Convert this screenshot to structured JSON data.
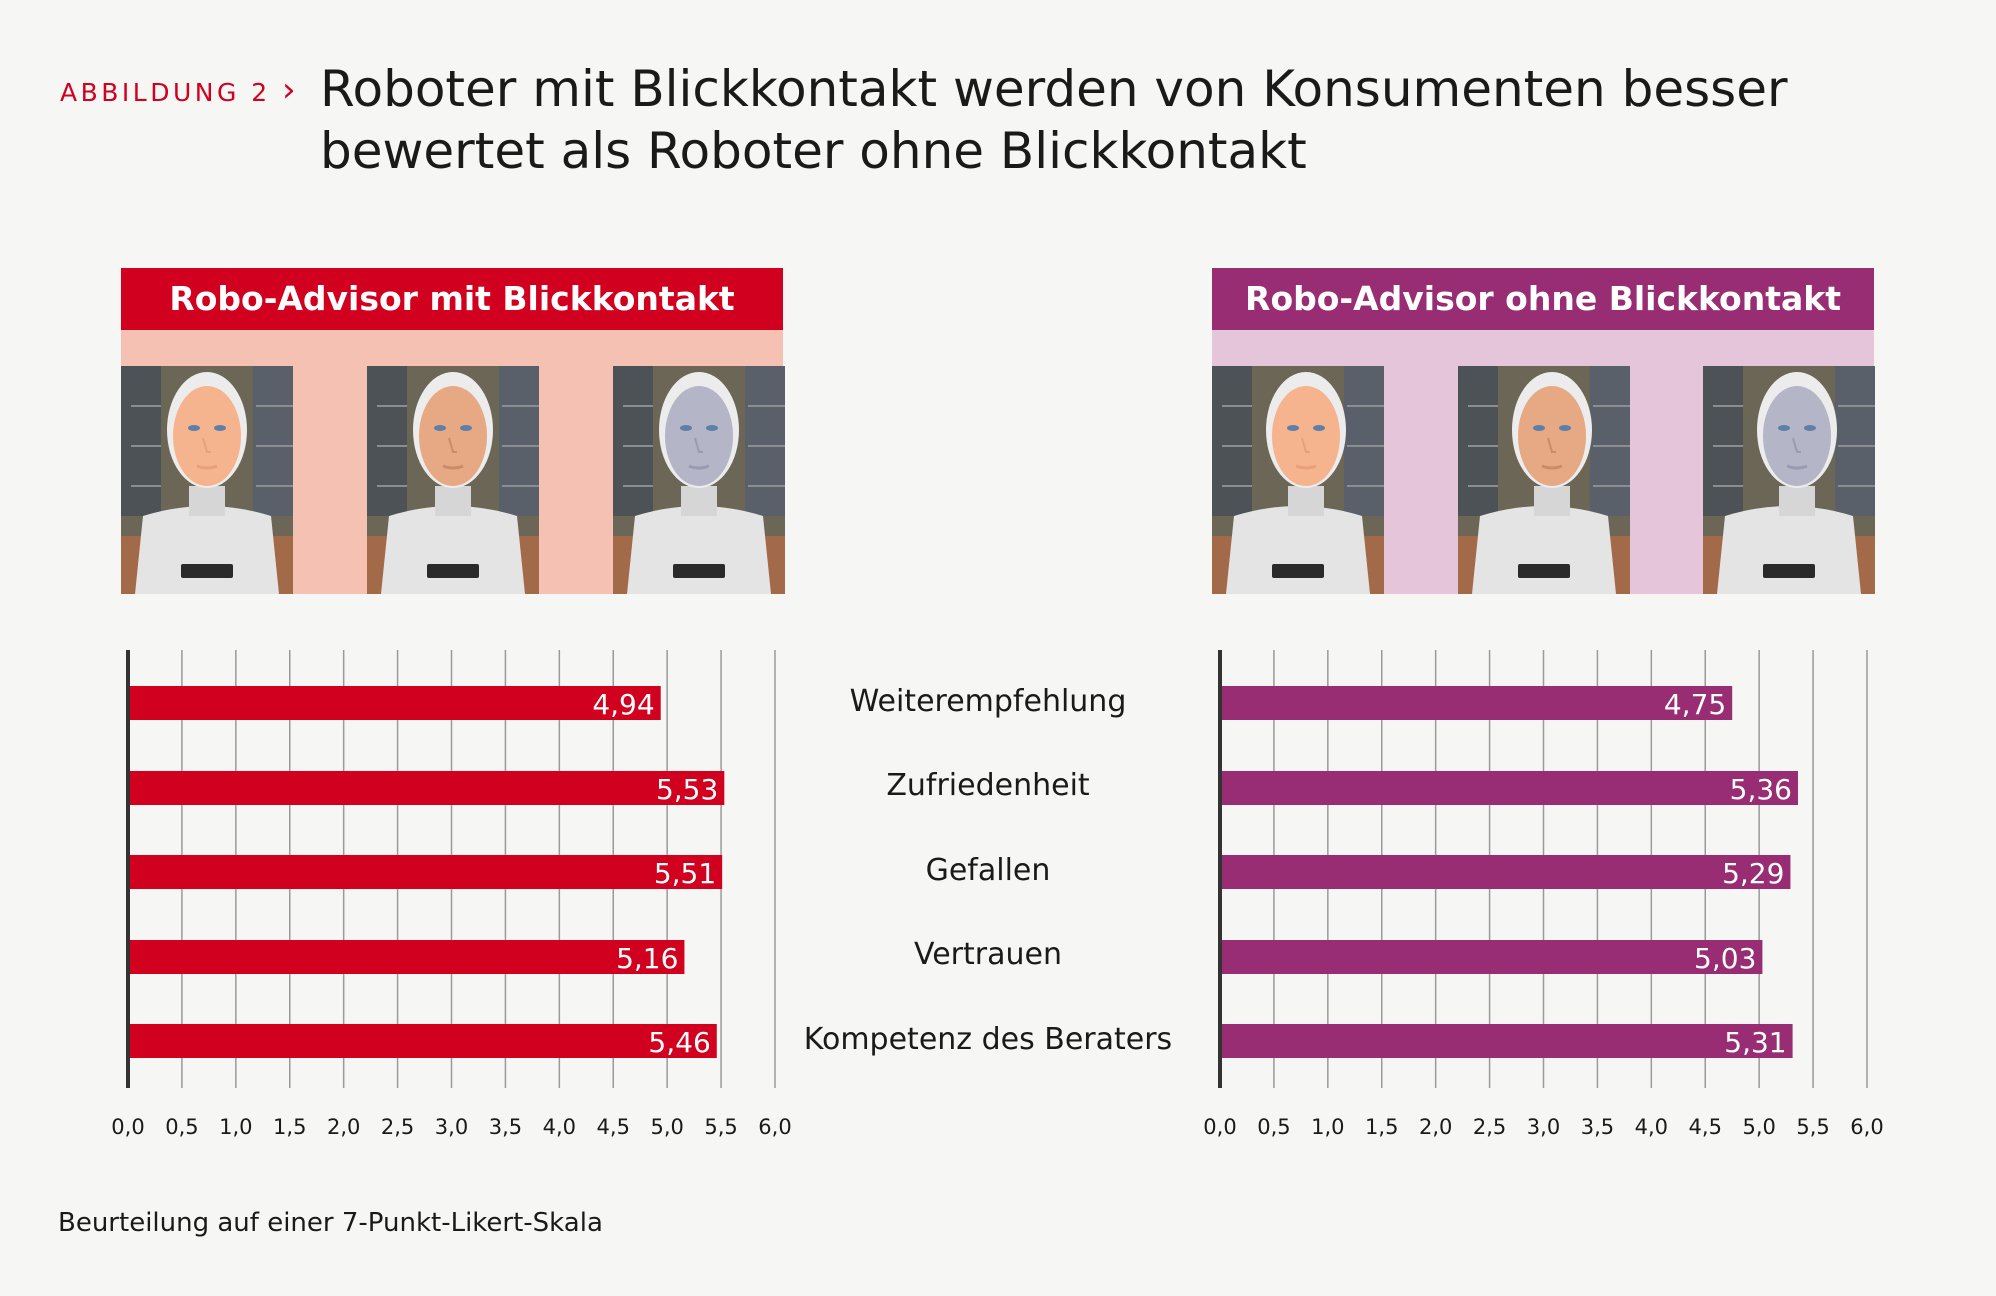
{
  "header": {
    "figure_label": "ABBILDUNG 2",
    "chevron": "›",
    "title": "Roboter mit Blickkontakt werden von Konsumenten besser bewertet als Roboter ohne Blickkontakt"
  },
  "panels": [
    {
      "heading": "Robo-Advisor mit Blickkontakt",
      "head_color": "#d1001f",
      "bg_color": "#f4c1b3"
    },
    {
      "heading": "Robo-Advisor ohne Blickkontakt",
      "head_color": "#982d73",
      "bg_color": "#e4c5d9"
    }
  ],
  "chart_data": [
    {
      "type": "bar",
      "orientation": "horizontal",
      "categories": [
        "Weiterempfehlung",
        "Zufriedenheit",
        "Gefallen",
        "Vertrauen",
        "Kompetenz des Beraters"
      ],
      "values": [
        4.94,
        5.53,
        5.51,
        5.16,
        5.46
      ],
      "value_labels": [
        "4,94",
        "5,53",
        "5,51",
        "5,16",
        "5,46"
      ],
      "xlim": [
        0,
        6
      ],
      "xticks": [
        "0,0",
        "0,5",
        "1,0",
        "1,5",
        "2,0",
        "2,5",
        "3,0",
        "3,5",
        "4,0",
        "4,5",
        "5,0",
        "5,5",
        "6,0"
      ],
      "color": "#d1001f",
      "grid": true
    },
    {
      "type": "bar",
      "orientation": "horizontal",
      "categories": [
        "Weiterempfehlung",
        "Zufriedenheit",
        "Gefallen",
        "Vertrauen",
        "Kompetenz des Beraters"
      ],
      "values": [
        4.75,
        5.36,
        5.29,
        5.03,
        5.31
      ],
      "value_labels": [
        "4,75",
        "5,36",
        "5,29",
        "5,03",
        "5,31"
      ],
      "xlim": [
        0,
        6
      ],
      "xticks": [
        "0,0",
        "0,5",
        "1,0",
        "1,5",
        "2,0",
        "2,5",
        "3,0",
        "3,5",
        "4,0",
        "4,5",
        "5,0",
        "5,5",
        "6,0"
      ],
      "color": "#982d73",
      "grid": true
    }
  ],
  "category_labels": [
    "Weiterempfehlung",
    "Zufriedenheit",
    "Gefallen",
    "Vertrauen",
    "Kompetenz des Beraters"
  ],
  "footnote": "Beurteilung auf einer 7-Punkt-Likert-Skala"
}
